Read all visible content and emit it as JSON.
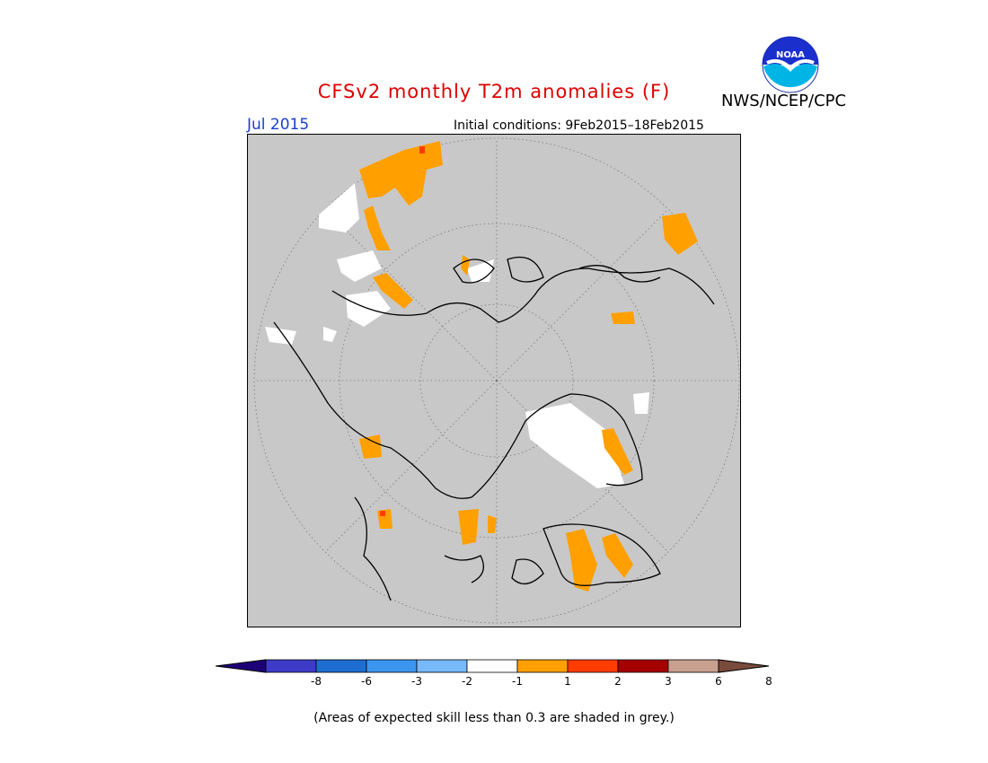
{
  "header": {
    "title": "CFSv2 monthly T2m anomalies (F)",
    "agency": "NWS/NCEP/CPC",
    "logo_text": "NOAA",
    "month": "Jul 2015",
    "initial_conditions": "Initial conditions: 9Feb2015–18Feb2015"
  },
  "colorbar": {
    "ticks": [
      "-8",
      "-6",
      "-3",
      "-2",
      "-1",
      "1",
      "2",
      "3",
      "6",
      "8"
    ],
    "colors": [
      "#1d0078",
      "#3c3cc8",
      "#1e6ed2",
      "#3c96f0",
      "#78b9fa",
      "#ffffff",
      "#ffa000",
      "#ff3c00",
      "#a50000",
      "#c8a090",
      "#784b3c"
    ]
  },
  "note": "(Areas of expected skill less than 0.3 are shaded in grey.)",
  "colors": {
    "title": "#dd0000",
    "month": "#1a3fcc",
    "map_background": "#c8c8c8",
    "warm_anomaly": "#ffa000",
    "strong_warm_anomaly": "#ff3c00",
    "near_normal": "#ffffff"
  }
}
